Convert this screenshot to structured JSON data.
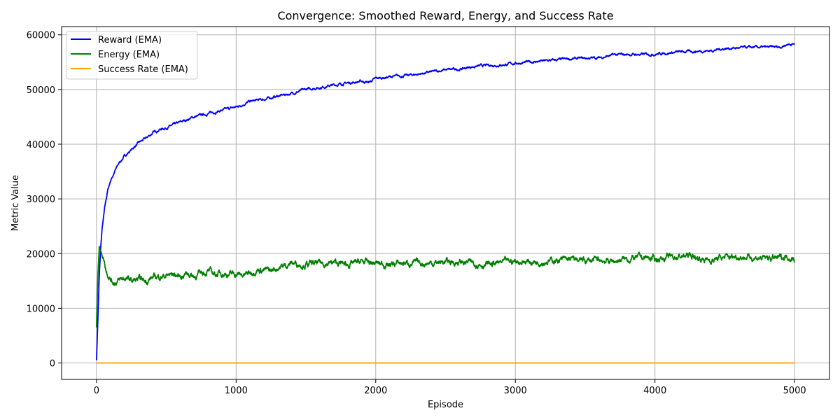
{
  "chart_data": {
    "type": "line",
    "title": "Convergence: Smoothed Reward, Energy, and Success Rate",
    "xlabel": "Episode",
    "ylabel": "Metric Value",
    "xlim": [
      -250,
      5250
    ],
    "ylim": [
      -3000,
      61500
    ],
    "xticks": [
      0,
      1000,
      2000,
      3000,
      4000,
      5000
    ],
    "yticks": [
      0,
      10000,
      20000,
      30000,
      40000,
      50000,
      60000
    ],
    "grid": true,
    "legend_position": "top-left",
    "series": [
      {
        "name": "Reward (EMA)",
        "color": "#0000ff",
        "x": [
          0,
          10,
          20,
          30,
          40,
          60,
          80,
          100,
          130,
          160,
          200,
          250,
          300,
          350,
          400,
          450,
          500,
          600,
          700,
          800,
          900,
          1000,
          1100,
          1200,
          1300,
          1400,
          1500,
          1600,
          1700,
          1800,
          1900,
          1950,
          2000,
          2100,
          2200,
          2300,
          2400,
          2500,
          2600,
          2700,
          2800,
          2900,
          3000,
          3100,
          3200,
          3300,
          3400,
          3500,
          3600,
          3700,
          3800,
          3900,
          4000,
          4100,
          4200,
          4300,
          4400,
          4500,
          4600,
          4700,
          4800,
          4900,
          4950,
          5000
        ],
        "y": [
          500,
          8000,
          16000,
          21000,
          24500,
          28500,
          31500,
          33300,
          35000,
          36500,
          37800,
          39000,
          40200,
          41000,
          42000,
          42700,
          43000,
          44000,
          45000,
          45600,
          46200,
          46800,
          47800,
          48200,
          48800,
          49300,
          50000,
          50400,
          50800,
          51200,
          51500,
          51300,
          52000,
          52300,
          52500,
          52800,
          53200,
          53600,
          53700,
          54200,
          54400,
          54500,
          54800,
          55000,
          55200,
          55400,
          55600,
          55700,
          55800,
          56300,
          56400,
          56400,
          56500,
          56700,
          56900,
          57000,
          57100,
          57500,
          57600,
          57700,
          57700,
          57800,
          58300,
          58300
        ]
      },
      {
        "name": "Energy (EMA)",
        "color": "#008000",
        "x": [
          0,
          10,
          20,
          30,
          50,
          70,
          90,
          110,
          130,
          160,
          200,
          250,
          300,
          350,
          400,
          450,
          500,
          550,
          600,
          650,
          700,
          750,
          800,
          850,
          900,
          950,
          1000,
          1050,
          1100,
          1150,
          1200,
          1250,
          1300,
          1350,
          1400,
          1500,
          1600,
          1700,
          1800,
          1900,
          2000,
          2100,
          2200,
          2300,
          2400,
          2500,
          2600,
          2700,
          2800,
          2900,
          3000,
          3100,
          3200,
          3300,
          3400,
          3500,
          3600,
          3700,
          3800,
          3900,
          4000,
          4100,
          4200,
          4250,
          4300,
          4400,
          4500,
          4600,
          4700,
          4800,
          4900,
          4950,
          5000
        ],
        "y": [
          6500,
          16000,
          21500,
          20500,
          19300,
          17000,
          16000,
          15000,
          14800,
          15000,
          15500,
          15000,
          15200,
          15000,
          15600,
          15800,
          16000,
          16200,
          15800,
          16500,
          15800,
          16500,
          16800,
          16200,
          16500,
          16200,
          16300,
          16000,
          16500,
          17200,
          17000,
          16800,
          17500,
          17800,
          18300,
          18000,
          18200,
          18300,
          18000,
          18500,
          18200,
          18000,
          18300,
          18200,
          18300,
          18500,
          18400,
          18300,
          18000,
          18300,
          18600,
          18500,
          18600,
          18800,
          18900,
          18700,
          18800,
          18600,
          19000,
          19300,
          19000,
          19300,
          19500,
          19700,
          19200,
          18800,
          19300,
          19500,
          19300,
          19100,
          19200,
          19600,
          19000
        ]
      },
      {
        "name": "Success Rate (EMA)",
        "color": "#ffa500",
        "x": [
          0,
          5000
        ],
        "y": [
          0,
          0
        ]
      }
    ]
  }
}
